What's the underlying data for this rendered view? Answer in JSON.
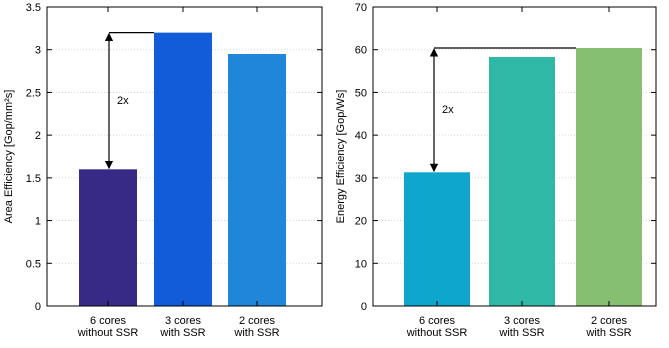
{
  "chart_data": [
    {
      "type": "bar",
      "categories": [
        [
          "6 cores",
          "without SSR"
        ],
        [
          "3 cores",
          "with SSR"
        ],
        [
          "2 cores",
          "with SSR"
        ]
      ],
      "values": [
        1.6,
        3.2,
        2.95
      ],
      "colors": [
        "#372a87",
        "#125bd9",
        "#1f86d9"
      ],
      "ylabel": "Area Efficiency [Gop/mm²s]",
      "xlabel": "",
      "title": "",
      "ylim": [
        0,
        3.5
      ],
      "yticks": [
        0,
        0.5,
        1,
        1.5,
        2,
        2.5,
        3,
        3.5
      ],
      "ytick_labels": [
        "0",
        "0.5",
        "1",
        "1.5",
        "2",
        "2.5",
        "3",
        "3.5"
      ],
      "grid": "horizontal-dotted",
      "annotation": {
        "text": "2x",
        "from_value": 1.6,
        "to_value": 3.2,
        "from_bar": 0,
        "to_bar": 1
      }
    },
    {
      "type": "bar",
      "categories": [
        [
          "6 cores",
          "without SSR"
        ],
        [
          "3 cores",
          "with SSR"
        ],
        [
          "2 cores",
          "with SSR"
        ]
      ],
      "values": [
        31.3,
        58.3,
        60.4
      ],
      "colors": [
        "#0ea6cc",
        "#2fb8a5",
        "#86be72"
      ],
      "ylabel": "Energy Efficiency [Gop/Ws]",
      "xlabel": "",
      "title": "",
      "ylim": [
        0,
        70
      ],
      "yticks": [
        0,
        10,
        20,
        30,
        40,
        50,
        60,
        70
      ],
      "ytick_labels": [
        "0",
        "10",
        "20",
        "30",
        "40",
        "50",
        "60",
        "70"
      ],
      "grid": "horizontal-dotted",
      "annotation": {
        "text": "2x",
        "from_value": 31.3,
        "to_value": 60.4,
        "from_bar": 0,
        "to_bar": 2
      }
    }
  ]
}
